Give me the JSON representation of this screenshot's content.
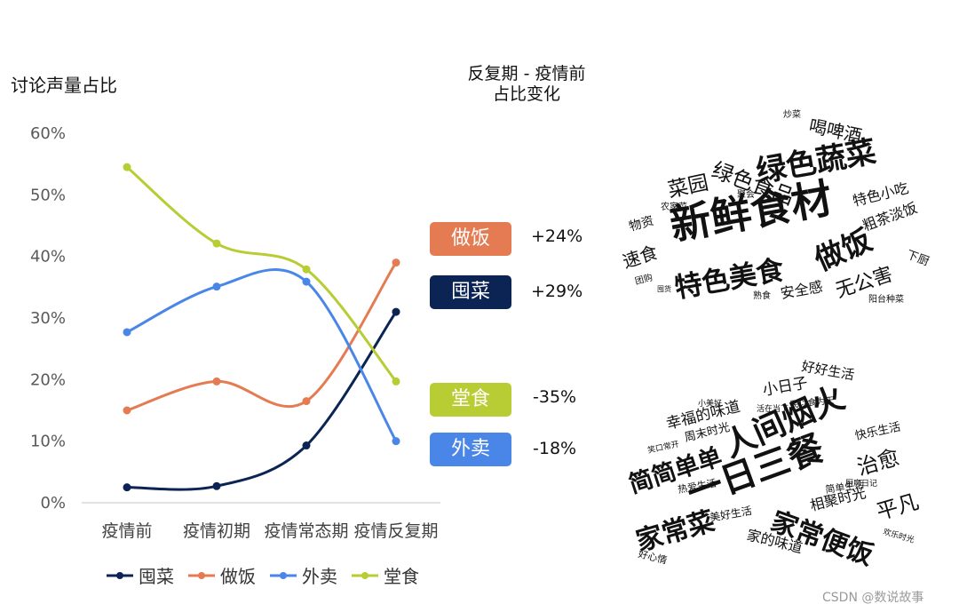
{
  "chart_data": {
    "type": "line",
    "ylabel": "讨论声量占比",
    "categories": [
      "疫情前",
      "疫情初期",
      "疫情常态期",
      "疫情反复期"
    ],
    "y_ticks": [
      "0%",
      "10%",
      "20%",
      "30%",
      "40%",
      "50%",
      "60%"
    ],
    "ylim": [
      0,
      60
    ],
    "legend_position": "bottom",
    "series": [
      {
        "name": "囤菜",
        "color": "#0c2454",
        "values": [
          2.5,
          2.7,
          9.3,
          31.0
        ]
      },
      {
        "name": "做饭",
        "color": "#e57b53",
        "values": [
          15.0,
          19.7,
          16.5,
          39.0
        ]
      },
      {
        "name": "外卖",
        "color": "#4a86e8",
        "values": [
          27.7,
          35.1,
          35.9,
          10.0
        ]
      },
      {
        "name": "堂食",
        "color": "#b8cc34",
        "values": [
          54.5,
          42.1,
          37.9,
          19.7
        ]
      }
    ]
  },
  "change_panel": {
    "title_line1": "反复期 - 疫情前",
    "title_line2": "占比变化",
    "items": [
      {
        "label": "做饭",
        "delta": "+24%",
        "color": "#e57b53"
      },
      {
        "label": "囤菜",
        "delta": "+29%",
        "color": "#0c2454"
      },
      {
        "label": "堂食",
        "delta": "-35%",
        "color": "#b8cc34"
      },
      {
        "label": "外卖",
        "delta": "-18%",
        "color": "#4a86e8"
      }
    ]
  },
  "word_clouds": [
    {
      "words": [
        "新鲜食材",
        "绿色蔬菜",
        "特色美食",
        "做饭",
        "绿色食品",
        "喝啤酒",
        "菜园",
        "无公害",
        "速食",
        "特色小吃",
        "粗茶淡饭",
        "安全感",
        "物资",
        "下厨",
        "炒菜",
        "聚会",
        "农家菜",
        "团购",
        "囤货",
        "熟食",
        "阳台种菜"
      ]
    },
    {
      "words": [
        "一日三餐",
        "人间烟火",
        "简简单单",
        "家常菜",
        "家常便饭",
        "治愈",
        "平凡",
        "幸福的味道",
        "小日子",
        "好好生活",
        "快乐生活",
        "相聚时光",
        "家的味道",
        "周末时光",
        "美好生活",
        "简单生活",
        "热爱生活",
        "小美好",
        "活在当下",
        "民以食为天",
        "笑口常开",
        "厨房日记",
        "欢乐时光",
        "好心情"
      ]
    }
  ],
  "watermark": "CSDN @数说故事"
}
